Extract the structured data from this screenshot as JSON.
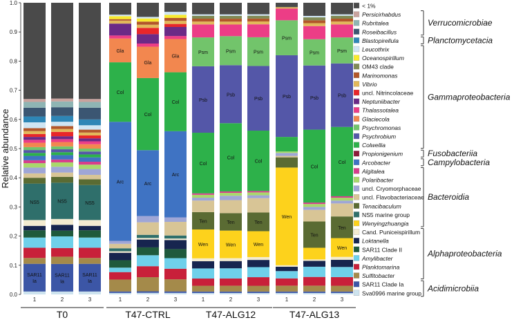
{
  "chart_data": {
    "type": "bar",
    "stacked": true,
    "ylabel": "Relative abundance",
    "ylim": [
      0,
      1
    ],
    "yticks": [
      "0.0",
      "0.1",
      "0.2",
      "0.3",
      "0.4",
      "0.5",
      "0.6",
      "0.7",
      "0.8",
      "0.9",
      "1.0"
    ],
    "groups": [
      {
        "name": "T0",
        "bars": [
          "1",
          "2",
          "3"
        ]
      },
      {
        "name": "T47-CTRL",
        "bars": [
          "1",
          "2",
          "3"
        ]
      },
      {
        "name": "T47-ALG12",
        "bars": [
          "1",
          "2",
          "3"
        ]
      },
      {
        "name": "T47-ALG13",
        "bars": [
          "1",
          "2",
          "3"
        ]
      }
    ],
    "taxa": [
      {
        "name": "Sva0996 marine group",
        "italic": false,
        "color": "#cde3ee"
      },
      {
        "name": "SAR11 Clade Ia",
        "italic": false,
        "color": "#3c56a6",
        "abbr": "SAR11 Ia"
      },
      {
        "name": "Sulfitobacter",
        "italic": true,
        "color": "#a48a4a"
      },
      {
        "name": "Planktomarina",
        "italic": true,
        "color": "#c8203a"
      },
      {
        "name": "Amylibacter",
        "italic": true,
        "color": "#6fd0ea"
      },
      {
        "name": "SAR11 Clade II",
        "italic": false,
        "color": "#1f5a3c"
      },
      {
        "name": "Loktanella",
        "italic": true,
        "color": "#17254f"
      },
      {
        "name": "Cand. Puniceispirillum",
        "italic": false,
        "color": "#f3ebd0"
      },
      {
        "name": "Wenyingzhuangia",
        "italic": true,
        "color": "#fdd21c",
        "abbr": "Wen"
      },
      {
        "name": "NS5 marine group",
        "italic": false,
        "color": "#2f6f6b",
        "abbr": "NS5"
      },
      {
        "name": "Tenacibaculum",
        "italic": true,
        "color": "#5a6b33",
        "abbr": "Ten"
      },
      {
        "name": "uncl. Flavobacteriaceae",
        "italic": false,
        "color": "#d8c596"
      },
      {
        "name": "uncl. Cryomorphaceae",
        "italic": false,
        "color": "#9fa6d6"
      },
      {
        "name": "Polaribacter",
        "italic": true,
        "color": "#a9d86b"
      },
      {
        "name": "Algitalea",
        "italic": true,
        "color": "#d73e8c"
      },
      {
        "name": "Arcobacter",
        "italic": true,
        "color": "#3f73c3",
        "abbr": "Arc"
      },
      {
        "name": "Propionigenium",
        "italic": true,
        "color": "#8b1c3a"
      },
      {
        "name": "Colwellia",
        "italic": true,
        "color": "#2db14a",
        "abbr": "Col"
      },
      {
        "name": "Psychrobium",
        "italic": true,
        "color": "#5457a8",
        "abbr": "Psb"
      },
      {
        "name": "Psychromonas",
        "italic": true,
        "color": "#72c46b",
        "abbr": "Psm"
      },
      {
        "name": "Glaciecola",
        "italic": true,
        "color": "#f2874f",
        "abbr": "Gla"
      },
      {
        "name": "Thalassotalea",
        "italic": true,
        "color": "#ec3d86"
      },
      {
        "name": "Neptuniibacter",
        "italic": true,
        "color": "#6b2a86"
      },
      {
        "name": "uncl. Nitrincolaceae",
        "italic": false,
        "color": "#e8262a"
      },
      {
        "name": "Vibrio",
        "italic": true,
        "color": "#e2b85a"
      },
      {
        "name": "Marinomonas",
        "italic": true,
        "color": "#b2562a"
      },
      {
        "name": "OM43 clade",
        "italic": false,
        "color": "#808a55"
      },
      {
        "name": "Oceanospirillum",
        "italic": true,
        "color": "#f8ea2d"
      },
      {
        "name": "Leucothrix",
        "italic": true,
        "color": "#cfe5f3"
      },
      {
        "name": "Blastopirellula",
        "italic": true,
        "color": "#2e86b6"
      },
      {
        "name": "Roseibacillus",
        "italic": true,
        "color": "#3b5672"
      },
      {
        "name": "Rubritalea",
        "italic": true,
        "color": "#8fb5b4"
      },
      {
        "name": "Persicirhabdus",
        "italic": true,
        "color": "#c9a39e"
      },
      {
        "name": "< 1%",
        "italic": false,
        "color": "#4a4a4a"
      }
    ],
    "values": [
      {
        "group": "T0",
        "bar": "1",
        "v": [
          0.01,
          0.095,
          0.02,
          0.035,
          0.035,
          0.025,
          0.015,
          0.02,
          0,
          0.125,
          0.02,
          0.015,
          0.02,
          0.015,
          0.01,
          0.015,
          0,
          0.01,
          0.01,
          0.01,
          0.015,
          0.01,
          0.01,
          0.01,
          0.01,
          0.01,
          0,
          0,
          0.02,
          0.02,
          0.03,
          0.02,
          0.01,
          0.33
        ]
      },
      {
        "group": "T0",
        "bar": "2",
        "v": [
          0.01,
          0.095,
          0.025,
          0.03,
          0.04,
          0.02,
          0.02,
          0.02,
          0,
          0.125,
          0.02,
          0.015,
          0.02,
          0.015,
          0.01,
          0.015,
          0,
          0.01,
          0.01,
          0.01,
          0.015,
          0.01,
          0.01,
          0.015,
          0.01,
          0.01,
          0,
          0,
          0.015,
          0.02,
          0.03,
          0.02,
          0.01,
          0.33
        ]
      },
      {
        "group": "T0",
        "bar": "3",
        "v": [
          0.01,
          0.095,
          0.02,
          0.035,
          0.035,
          0.025,
          0.015,
          0.02,
          0,
          0.12,
          0.02,
          0.015,
          0.02,
          0.015,
          0.01,
          0.015,
          0,
          0.01,
          0.01,
          0.01,
          0.015,
          0.01,
          0.01,
          0.01,
          0.01,
          0.01,
          0,
          0,
          0.015,
          0.02,
          0.04,
          0.02,
          0.01,
          0.33
        ]
      },
      {
        "group": "T47-CTRL",
        "bar": "1",
        "v": [
          0.005,
          0.005,
          0.04,
          0.025,
          0.015,
          0.025,
          0.025,
          0.005,
          0,
          0.01,
          0,
          0.015,
          0.01,
          0,
          0,
          0.4,
          0,
          0.2,
          0,
          0,
          0.08,
          0.01,
          0.04,
          0,
          0.01,
          0.005,
          0,
          0.01,
          0.005,
          0,
          0,
          0,
          0,
          0.04
        ]
      },
      {
        "group": "T47-CTRL",
        "bar": "2",
        "v": [
          0.005,
          0.005,
          0.045,
          0.035,
          0.035,
          0.025,
          0.025,
          0.005,
          0,
          0.01,
          0,
          0.04,
          0.02,
          0,
          0,
          0.21,
          0,
          0.23,
          0,
          0,
          0.1,
          0.01,
          0.03,
          0.02,
          0.01,
          0.01,
          0,
          0.01,
          0.005,
          0,
          0,
          0,
          0,
          0.045
        ]
      },
      {
        "group": "T47-CTRL",
        "bar": "3",
        "v": [
          0.005,
          0.005,
          0.04,
          0.035,
          0.035,
          0.03,
          0.03,
          0.005,
          0,
          0.01,
          0,
          0.045,
          0.015,
          0,
          0,
          0.285,
          0,
          0.195,
          0,
          0,
          0.11,
          0.01,
          0.03,
          0.01,
          0.01,
          0.01,
          0,
          0.01,
          0.01,
          0,
          0,
          0,
          0,
          0.03
        ]
      },
      {
        "group": "T47-ALG12",
        "bar": "1",
        "v": [
          0.005,
          0.005,
          0.02,
          0.025,
          0.035,
          0.0,
          0.025,
          0.01,
          0.1,
          0.0,
          0.06,
          0.04,
          0.01,
          0.01,
          0.005,
          0,
          0,
          0.21,
          0.23,
          0.1,
          0,
          0.045,
          0,
          0,
          0.01,
          0.01,
          0.01,
          0,
          0.005,
          0,
          0,
          0,
          0,
          0.04
        ]
      },
      {
        "group": "T47-ALG12",
        "bar": "2",
        "v": [
          0.005,
          0.005,
          0.02,
          0.025,
          0.035,
          0.0,
          0.025,
          0.01,
          0.095,
          0.0,
          0.06,
          0.045,
          0.015,
          0.01,
          0.005,
          0,
          0,
          0.235,
          0.2,
          0.1,
          0,
          0.04,
          0,
          0,
          0.01,
          0.01,
          0.01,
          0,
          0.005,
          0,
          0,
          0,
          0,
          0.04
        ]
      },
      {
        "group": "T47-ALG12",
        "bar": "3",
        "v": [
          0.005,
          0.005,
          0.02,
          0.03,
          0.035,
          0.0,
          0.025,
          0.01,
          0.09,
          0.0,
          0.065,
          0.05,
          0.01,
          0.01,
          0.005,
          0,
          0,
          0.21,
          0.225,
          0.1,
          0,
          0.045,
          0,
          0,
          0.01,
          0.01,
          0.01,
          0,
          0.005,
          0,
          0,
          0,
          0,
          0.04
        ]
      },
      {
        "group": "T47-ALG13",
        "bar": "1",
        "v": [
          0.005,
          0.005,
          0.02,
          0.025,
          0.025,
          0.0,
          0.015,
          0.005,
          0.335,
          0.0,
          0.035,
          0.005,
          0.01,
          0.005,
          0.0,
          0,
          0,
          0.05,
          0.28,
          0.12,
          0,
          0.04,
          0,
          0,
          0.005,
          0,
          0,
          0,
          0,
          0,
          0,
          0,
          0,
          0.015
        ]
      },
      {
        "group": "T47-ALG13",
        "bar": "2",
        "v": [
          0.005,
          0.005,
          0.02,
          0.03,
          0.035,
          0.0,
          0.02,
          0.005,
          0.04,
          0.0,
          0.09,
          0.04,
          0.01,
          0.01,
          0.005,
          0,
          0,
          0.25,
          0.22,
          0.09,
          0,
          0.045,
          0,
          0,
          0.01,
          0.01,
          0.01,
          0,
          0.005,
          0,
          0,
          0,
          0,
          0.045
        ]
      },
      {
        "group": "T47-ALG13",
        "bar": "3",
        "v": [
          0.005,
          0.005,
          0.02,
          0.03,
          0.035,
          0.0,
          0.025,
          0.01,
          0.065,
          0.0,
          0.075,
          0.045,
          0.01,
          0.01,
          0.005,
          0,
          0,
          0.24,
          0.22,
          0.09,
          0,
          0.045,
          0,
          0,
          0.01,
          0.01,
          0.01,
          0,
          0.005,
          0,
          0,
          0,
          0,
          0.04
        ]
      }
    ],
    "classes": [
      {
        "name": "Verrucomicrobiae",
        "from": "Persicirhabdus",
        "to": "Roseibacillus"
      },
      {
        "name": "Planctomycetacia",
        "from": "Blastopirellula",
        "to": "Blastopirellula"
      },
      {
        "name": "Gammaproteobacteria",
        "from": "Leucothrix",
        "to": "Colwellia"
      },
      {
        "name": "Fusobacteriia",
        "from": "Propionigenium",
        "to": "Propionigenium"
      },
      {
        "name": "Campylobacteria",
        "from": "Arcobacter",
        "to": "Arcobacter"
      },
      {
        "name": "Bacteroidia",
        "from": "Algitalea",
        "to": "Wenyingzhuangia"
      },
      {
        "name": "Alphaproteobacteria",
        "from": "Cand. Puniceispirillum",
        "to": "Sulfitobacter"
      },
      {
        "name": "Acidimicrobiia",
        "from": "SAR11 Clade Ia",
        "to": "Sva0996 marine group"
      }
    ],
    "legend_position": "right",
    "grid": false
  }
}
